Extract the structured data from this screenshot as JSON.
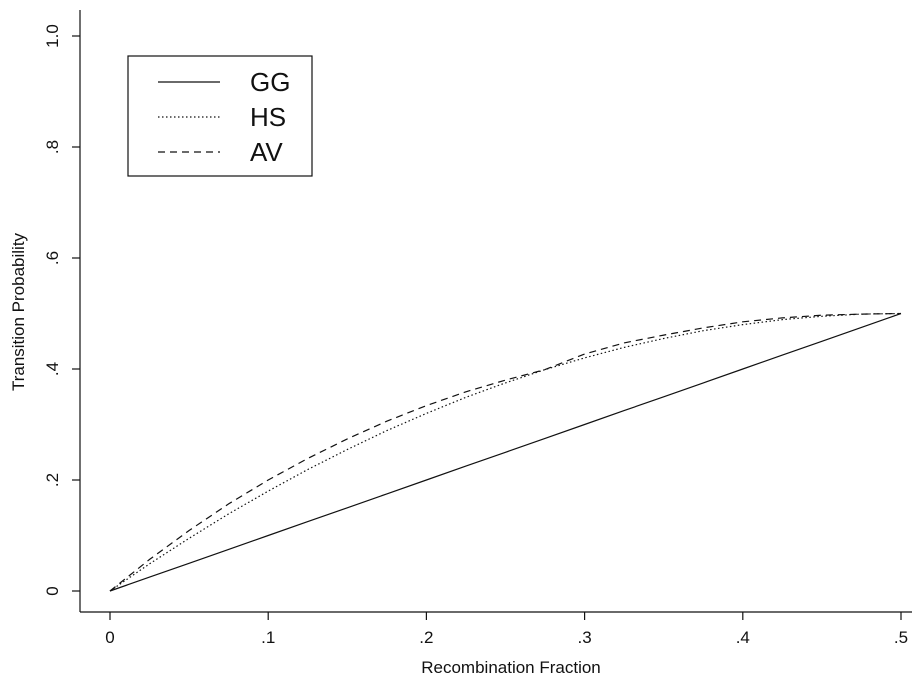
{
  "chart_data": {
    "type": "line",
    "title": "",
    "xlabel": "Recombination Fraction",
    "ylabel": "Transition Probability",
    "xlim": [
      0,
      0.5
    ],
    "ylim": [
      0,
      1.0
    ],
    "x_ticks": [
      {
        "value": 0,
        "label": "0"
      },
      {
        "value": 0.1,
        "label": ".1"
      },
      {
        "value": 0.2,
        "label": ".2"
      },
      {
        "value": 0.3,
        "label": ".3"
      },
      {
        "value": 0.4,
        "label": ".4"
      },
      {
        "value": 0.5,
        "label": ".5"
      }
    ],
    "y_ticks": [
      {
        "value": 0,
        "label": "0"
      },
      {
        "value": 0.2,
        "label": ".2"
      },
      {
        "value": 0.4,
        "label": ".4"
      },
      {
        "value": 0.6,
        "label": ".6"
      },
      {
        "value": 0.8,
        "label": ".8"
      },
      {
        "value": 1.0,
        "label": "1.0"
      }
    ],
    "grid": false,
    "legend_position": "top-left",
    "x": [
      0,
      0.025,
      0.05,
      0.075,
      0.1,
      0.125,
      0.15,
      0.175,
      0.2,
      0.225,
      0.25,
      0.275,
      0.3,
      0.325,
      0.35,
      0.375,
      0.4,
      0.425,
      0.45,
      0.475,
      0.5
    ],
    "series": [
      {
        "name": "GG",
        "style": "solid",
        "values": [
          0,
          0.025,
          0.05,
          0.075,
          0.1,
          0.125,
          0.15,
          0.175,
          0.2,
          0.225,
          0.25,
          0.275,
          0.3,
          0.325,
          0.35,
          0.375,
          0.4,
          0.425,
          0.45,
          0.475,
          0.5
        ]
      },
      {
        "name": "HS",
        "style": "dotted",
        "values": [
          0,
          0.049,
          0.095,
          0.139,
          0.18,
          0.219,
          0.255,
          0.289,
          0.32,
          0.349,
          0.375,
          0.399,
          0.42,
          0.439,
          0.455,
          0.469,
          0.48,
          0.489,
          0.495,
          0.499,
          0.5
        ]
      },
      {
        "name": "AV",
        "style": "dashed",
        "values": [
          0,
          0.057,
          0.109,
          0.157,
          0.2,
          0.239,
          0.274,
          0.306,
          0.334,
          0.359,
          0.38,
          0.399,
          0.427,
          0.447,
          0.461,
          0.474,
          0.485,
          0.492,
          0.497,
          0.499,
          0.5
        ]
      }
    ]
  }
}
